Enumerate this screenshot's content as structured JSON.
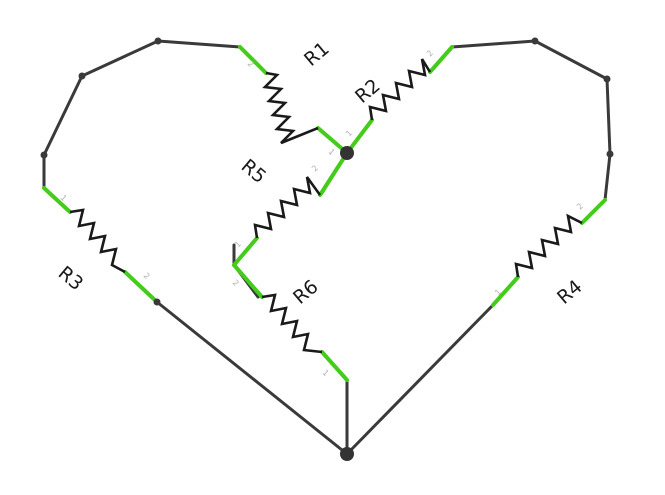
{
  "colors": {
    "wire": "#3a3a3a",
    "lead": "#44cc1a",
    "resistor": "#1a1a1a",
    "pin_text": "#b0b0b0",
    "background": "#ffffff"
  },
  "resistors": [
    {
      "name": "R1",
      "pin_a": "2",
      "pin_b": "1"
    },
    {
      "name": "R2",
      "pin_a": "1",
      "pin_b": "2"
    },
    {
      "name": "R3",
      "pin_a": "1",
      "pin_b": "2"
    },
    {
      "name": "R4",
      "pin_a": "1",
      "pin_b": "2"
    },
    {
      "name": "R5",
      "pin_a": "1",
      "pin_b": "2"
    },
    {
      "name": "R6",
      "pin_a": "2",
      "pin_b": "1"
    }
  ]
}
